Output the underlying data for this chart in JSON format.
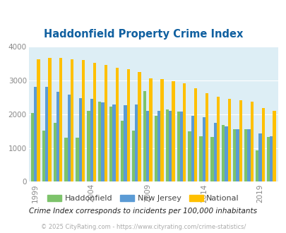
{
  "title": "Haddonfield Property Crime Index",
  "years": [
    1999,
    2000,
    2001,
    2002,
    2003,
    2004,
    2005,
    2006,
    2007,
    2008,
    2009,
    2010,
    2011,
    2012,
    2013,
    2014,
    2015,
    2016,
    2017,
    2018,
    2019,
    2020
  ],
  "haddonfield": [
    2030,
    1510,
    1750,
    1300,
    1310,
    2090,
    2380,
    2230,
    1800,
    1510,
    2680,
    1950,
    2150,
    2070,
    1500,
    1340,
    1320,
    1680,
    1560,
    1560,
    920,
    1330
  ],
  "new_jersey": [
    2800,
    2800,
    2660,
    2570,
    2480,
    2450,
    2340,
    2280,
    2270,
    2290,
    2100,
    2100,
    2090,
    2070,
    1960,
    1910,
    1740,
    1640,
    1560,
    1560,
    1420,
    1350
  ],
  "national": [
    3620,
    3670,
    3670,
    3620,
    3600,
    3520,
    3450,
    3380,
    3330,
    3240,
    3060,
    3040,
    2980,
    2920,
    2760,
    2620,
    2510,
    2460,
    2420,
    2380,
    2180,
    2100
  ],
  "haddonfield_color": "#7dc36b",
  "new_jersey_color": "#5b9bd5",
  "national_color": "#ffc000",
  "bg_color": "#ddeef5",
  "title_color": "#1060a0",
  "ylim": [
    0,
    4000
  ],
  "yticks": [
    0,
    1000,
    2000,
    3000,
    4000
  ],
  "xtick_years": [
    1999,
    2004,
    2009,
    2014,
    2019
  ],
  "subtitle": "Crime Index corresponds to incidents per 100,000 inhabitants",
  "footer": "© 2025 CityRating.com - https://www.cityrating.com/crime-statistics/",
  "legend_labels": [
    "Haddonfield",
    "New Jersey",
    "National"
  ],
  "bar_width": 0.27
}
